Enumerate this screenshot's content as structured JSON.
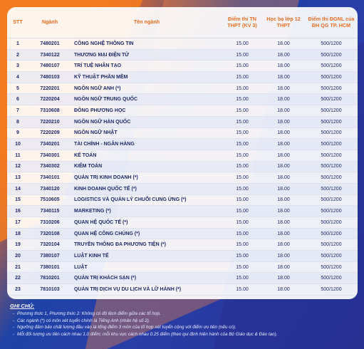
{
  "headers": {
    "stt": "STT",
    "code": "Ngành",
    "name": "Tên ngành",
    "thpt": "Điểm thi TN THPT (KV 3)",
    "hocba": "Học bạ lớp 12 THPT",
    "dgnl": "Điểm thi ĐGNL của ĐH QG TP. HCM"
  },
  "rows": [
    {
      "stt": "1",
      "code": "7480201",
      "name": "CÔNG NGHỆ THÔNG TIN",
      "thpt": "15.00",
      "hocba": "18.00",
      "dgnl": "500/1200"
    },
    {
      "stt": "2",
      "code": "7340122",
      "name": "THƯƠNG MẠI ĐIỆN TỬ",
      "thpt": "15.00",
      "hocba": "18.00",
      "dgnl": "500/1200"
    },
    {
      "stt": "3",
      "code": "7480107",
      "name": "TRÍ TUỆ NHÂN TẠO",
      "thpt": "15.00",
      "hocba": "18.00",
      "dgnl": "500/1200"
    },
    {
      "stt": "4",
      "code": "7480103",
      "name": "KỸ THUẬT PHẦN MỀM",
      "thpt": "15.00",
      "hocba": "18.00",
      "dgnl": "500/1200"
    },
    {
      "stt": "5",
      "code": "7220201",
      "name": "NGÔN NGỮ ANH (*)",
      "thpt": "15.00",
      "hocba": "18.00",
      "dgnl": "500/1200"
    },
    {
      "stt": "6",
      "code": "7220204",
      "name": "NGÔN NGỮ TRUNG QUỐC",
      "thpt": "15.00",
      "hocba": "18.00",
      "dgnl": "500/1200"
    },
    {
      "stt": "7",
      "code": "7310608",
      "name": "ĐÔNG PHƯƠNG HỌC",
      "thpt": "15.00",
      "hocba": "18.00",
      "dgnl": "500/1200"
    },
    {
      "stt": "8",
      "code": "7220210",
      "name": "NGÔN NGỮ HÀN QUỐC",
      "thpt": "15.00",
      "hocba": "18.00",
      "dgnl": "500/1200"
    },
    {
      "stt": "9",
      "code": "7220209",
      "name": "NGÔN NGỮ NHẬT",
      "thpt": "15.00",
      "hocba": "18.00",
      "dgnl": "500/1200"
    },
    {
      "stt": "10",
      "code": "7340201",
      "name": "TÀI CHÍNH - NGÂN HÀNG",
      "thpt": "15.00",
      "hocba": "18.00",
      "dgnl": "500/1200"
    },
    {
      "stt": "11",
      "code": "7340301",
      "name": "KẾ TOÁN",
      "thpt": "15.00",
      "hocba": "18.00",
      "dgnl": "500/1200"
    },
    {
      "stt": "12",
      "code": "7340302",
      "name": "KIỂM TOÁN",
      "thpt": "15.00",
      "hocba": "18.00",
      "dgnl": "500/1200"
    },
    {
      "stt": "13",
      "code": "7340101",
      "name": "QUẢN TRỊ KINH DOANH (*)",
      "thpt": "15.00",
      "hocba": "18.00",
      "dgnl": "500/1200"
    },
    {
      "stt": "14",
      "code": "7340120",
      "name": "KINH DOANH QUỐC TẾ (*)",
      "thpt": "15.00",
      "hocba": "18.00",
      "dgnl": "500/1200"
    },
    {
      "stt": "15",
      "code": "7510605",
      "name": "LOGISTICS VÀ QUẢN LÝ CHUỖI CUNG ỨNG (*)",
      "thpt": "15.00",
      "hocba": "18.00",
      "dgnl": "500/1200"
    },
    {
      "stt": "16",
      "code": "7340115",
      "name": "MARKETING (*)",
      "thpt": "15.00",
      "hocba": "18.00",
      "dgnl": "500/1200"
    },
    {
      "stt": "17",
      "code": "7310206",
      "name": "QUAN HỆ QUỐC TẾ (*)",
      "thpt": "15.00",
      "hocba": "18.00",
      "dgnl": "500/1200"
    },
    {
      "stt": "18",
      "code": "7320108",
      "name": "QUAN HỆ CÔNG CHÚNG (*)",
      "thpt": "15.00",
      "hocba": "18.00",
      "dgnl": "500/1200"
    },
    {
      "stt": "19",
      "code": "7320104",
      "name": "TRUYỀN THÔNG ĐA PHƯƠNG TIỆN (*)",
      "thpt": "15.00",
      "hocba": "18.00",
      "dgnl": "500/1200"
    },
    {
      "stt": "20",
      "code": "7380107",
      "name": "LUẬT KINH TẾ",
      "thpt": "15.00",
      "hocba": "18.00",
      "dgnl": "500/1200"
    },
    {
      "stt": "21",
      "code": "7380101",
      "name": "LUẬT",
      "thpt": "15.00",
      "hocba": "18.00",
      "dgnl": "500/1200"
    },
    {
      "stt": "22",
      "code": "7810201",
      "name": "QUẢN TRỊ KHÁCH SẠN (*)",
      "thpt": "15.00",
      "hocba": "18.00",
      "dgnl": "500/1200"
    },
    {
      "stt": "23",
      "code": "7810103",
      "name": "QUẢN TRỊ DỊCH VỤ DU LỊCH VÀ LỮ HÀNH (*)",
      "thpt": "15.00",
      "hocba": "18.00",
      "dgnl": "500/1200"
    }
  ],
  "notes": {
    "title": "GHI CHÚ:",
    "items": [
      "Phương thức 1, Phương thức 2: Không có độ lệch điểm giữa các tổ hợp.",
      "Các ngành (*) có môn xét tuyển chính là Tiếng Anh (nhân hệ số 2).",
      "Ngưỡng đảm bảo chất lượng đầu vào là tổng điểm 3 môn của tổ hợp xét tuyển cộng với điểm ưu tiên (nếu có).",
      "Mỗi đối tượng ưu tiên cách nhau 1.0 điểm; mỗi khu vực cách nhau 0.25 điểm (theo qui định hiện hành của Bộ Giáo dục & Đào tạo)."
    ]
  },
  "colors": {
    "header_text": "#e56e22",
    "body_text": "#1f2b68",
    "bg_orange": "#f07a22",
    "bg_blue": "#1e43a6"
  }
}
